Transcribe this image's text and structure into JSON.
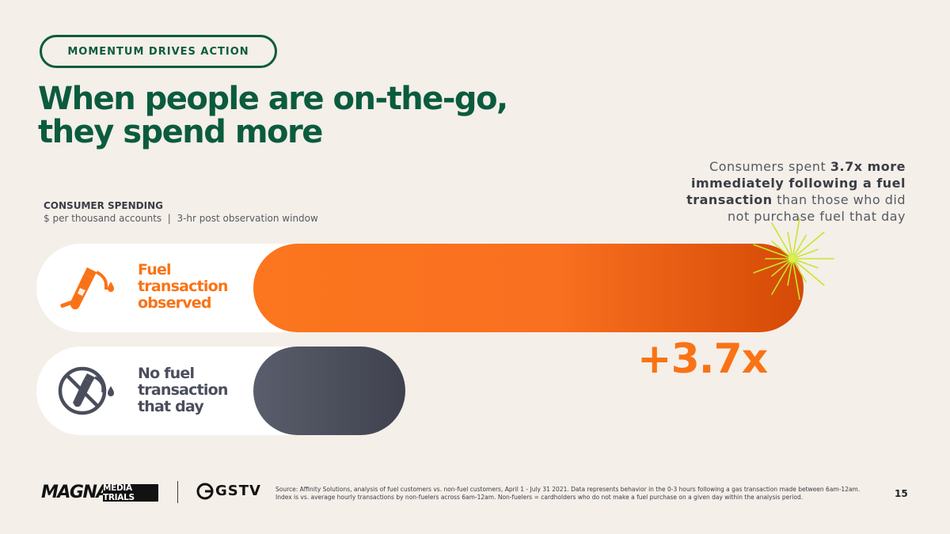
{
  "header": {
    "tag": "MOMENTUM DRIVES ACTION",
    "title_line1": "When people are on-the-go,",
    "title_line2": "they spend more"
  },
  "callout": {
    "part1": "Consumers spent ",
    "bold1": "3.7x more immediately following a fuel transaction",
    "part2": " than those who did not purchase fuel that day"
  },
  "consumer_spending": {
    "title": "CONSUMER SPENDING",
    "subtitle": "$ per thousand accounts  |  3-hr post observation window"
  },
  "chart_data": {
    "type": "bar",
    "orientation": "horizontal",
    "categories": [
      "Fuel transaction observed",
      "No fuel transaction that day"
    ],
    "values": [
      3.7,
      1.0
    ],
    "colors": [
      "#f97316",
      "#474a56"
    ],
    "index_label": "+3.7x",
    "title": "CONSUMER SPENDING",
    "xlabel": "",
    "ylabel": "$ per thousand accounts  |  3-hr post observation window"
  },
  "rows": {
    "fuel": {
      "l1": "Fuel",
      "l2": "transaction",
      "l3": "observed",
      "color": "#f97316"
    },
    "nofuel": {
      "l1": "No fuel",
      "l2": "transaction",
      "l3": "that day",
      "color": "#4a4e5c"
    }
  },
  "icons": {
    "fuel": "fuel-pump-icon",
    "nofuel": "no-fuel-pump-icon",
    "spark": "spark-icon"
  },
  "footer": {
    "logo_magna": "MAGNA",
    "logo_mediatrials": "MEDIA TRIALS",
    "logo_gstv": "GSTV",
    "source": "Source: Affinity Solutions, analysis of fuel customers vs. non-fuel customers, April 1 - July 31 2021. Data represents behavior in the 0-3 hours following a gas transaction made between 6am-12am. Index is vs. average hourly transactions by non-fuelers across 6am-12am. Non-fuelers = cardholders who do not make a fuel purchase on a given day within the analysis period.",
    "page": "15"
  }
}
